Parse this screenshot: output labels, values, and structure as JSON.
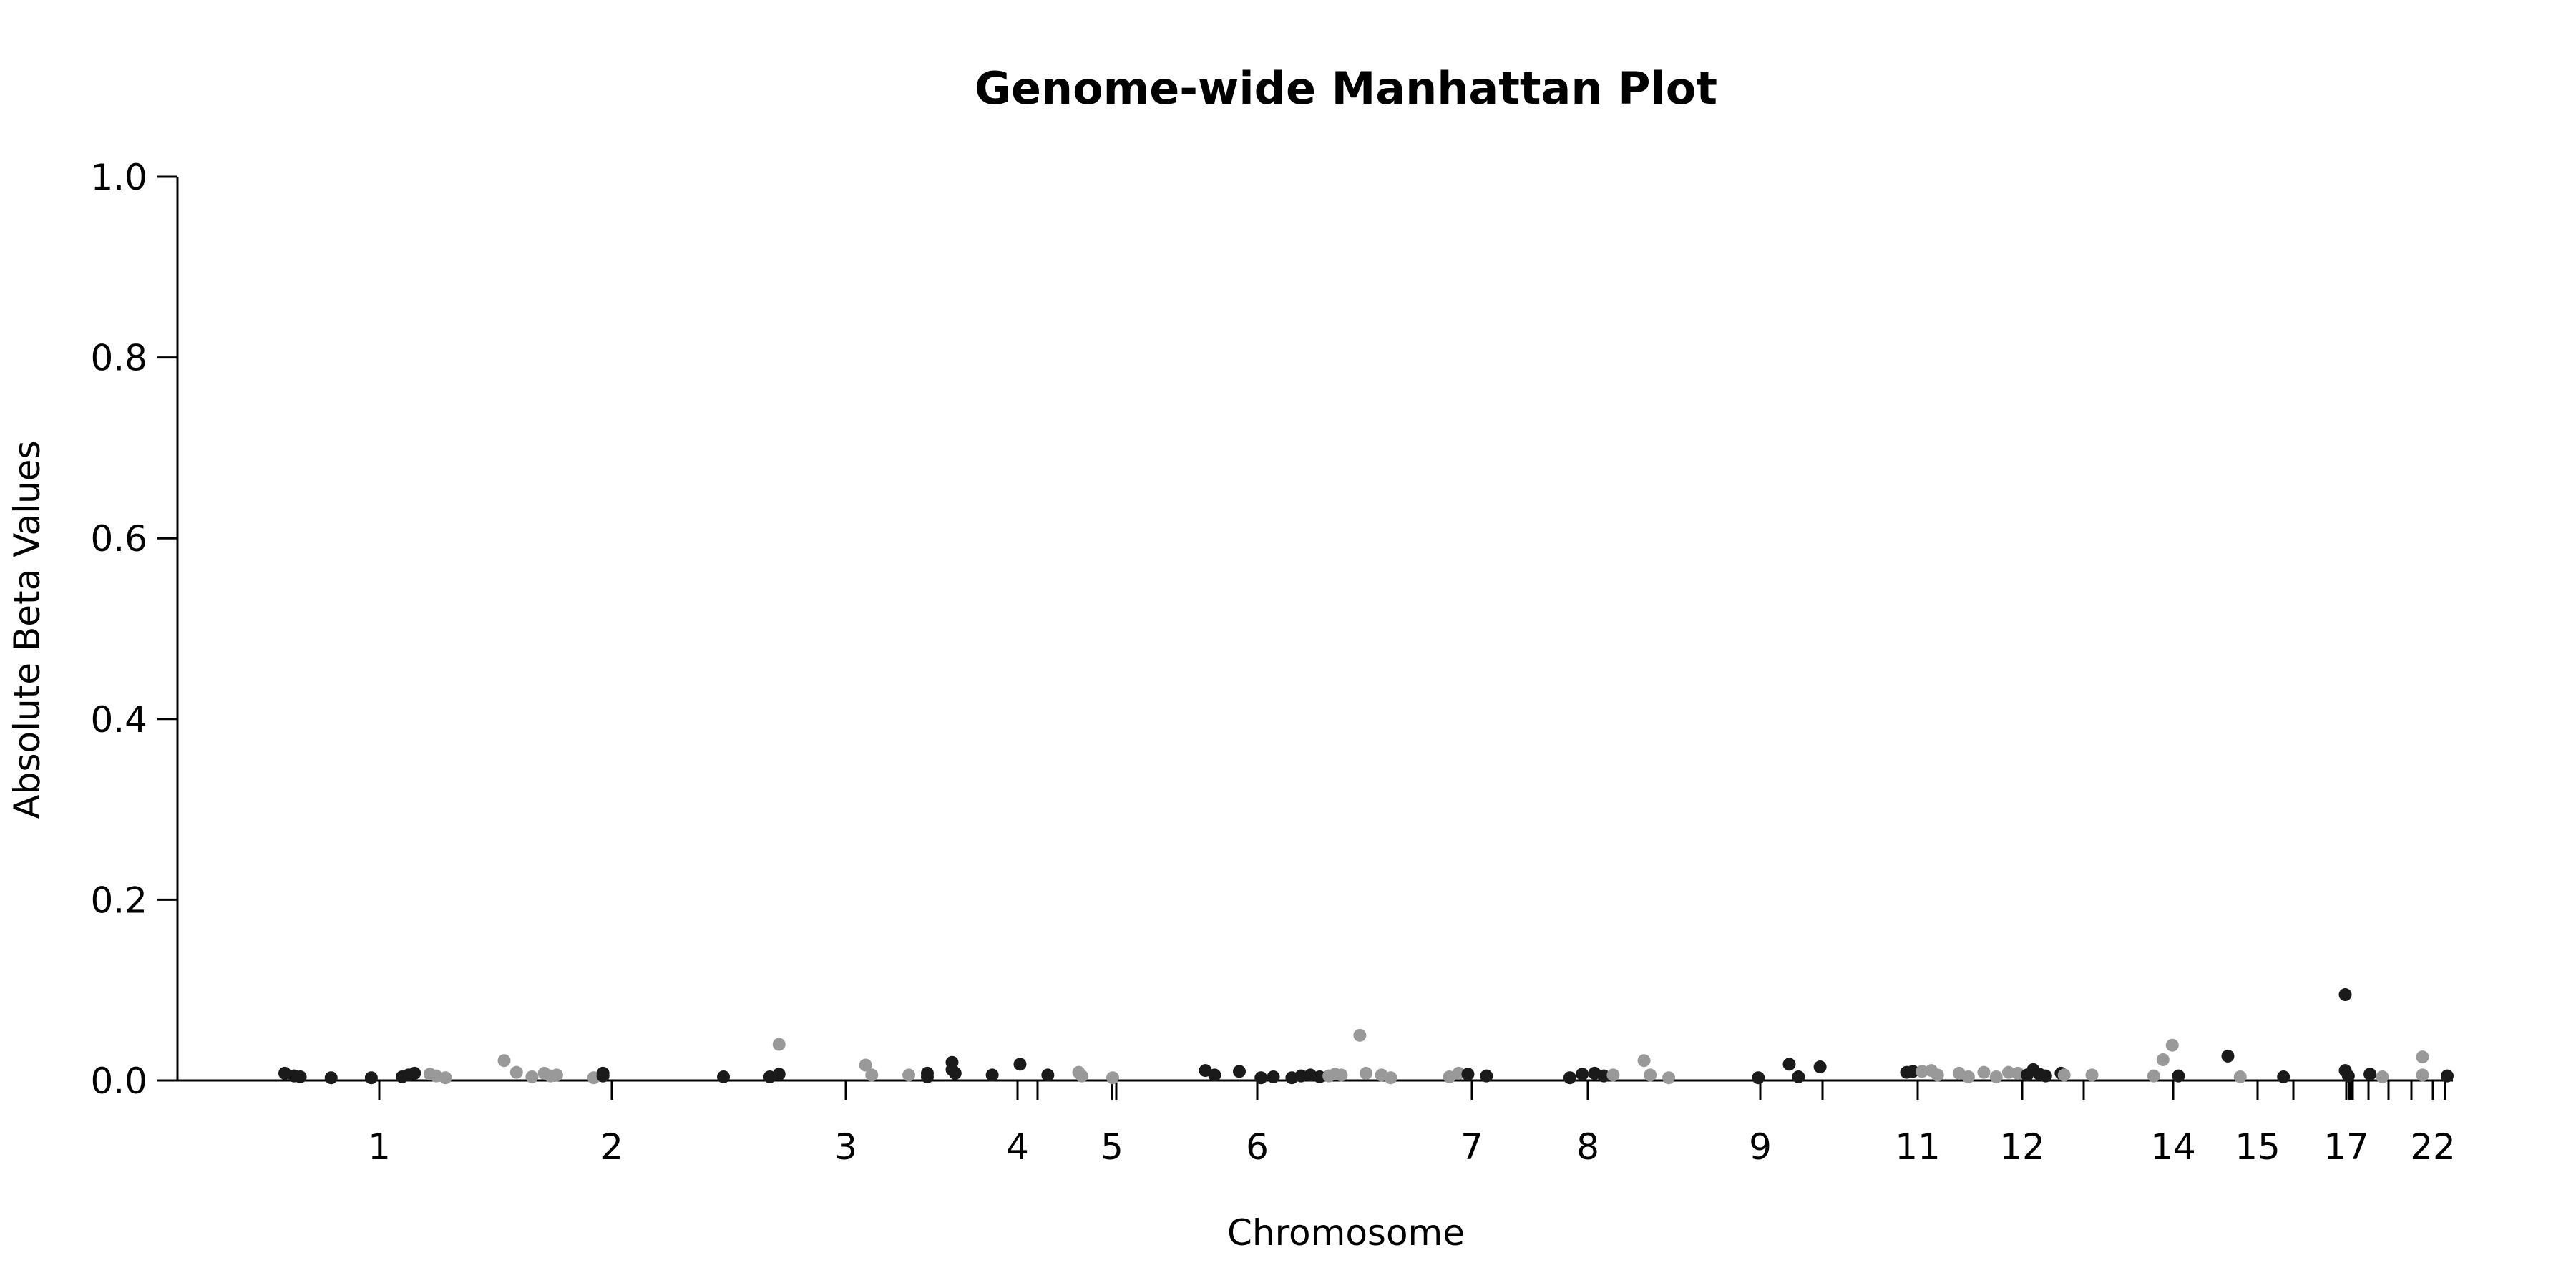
{
  "chart_data": {
    "type": "scatter",
    "title": "Genome-wide Manhattan Plot",
    "xlabel": "Chromosome",
    "ylabel": "Absolute Beta Values",
    "ylim": [
      0,
      1
    ],
    "yticks": [
      "0.0",
      "0.2",
      "0.4",
      "0.6",
      "0.8",
      "1.0"
    ],
    "x_tick_labels": [
      "1",
      "2",
      "3",
      "4",
      "5",
      "6",
      "7",
      "8",
      "9",
      "11",
      "12",
      "14",
      "15",
      "17",
      "22"
    ],
    "grid": false,
    "legend": "none",
    "colors": {
      "dark": "#1a1a1a",
      "light": "#999999",
      "axis": "#000000"
    },
    "points": [
      {
        "x": 0.0,
        "y": 0.008,
        "c": "dark"
      },
      {
        "x": 0.03,
        "y": 0.005,
        "c": "dark"
      },
      {
        "x": 0.05,
        "y": 0.004,
        "c": "dark"
      },
      {
        "x": 0.15,
        "y": 0.003,
        "c": "dark"
      },
      {
        "x": 0.28,
        "y": 0.003,
        "c": "dark"
      },
      {
        "x": 0.38,
        "y": 0.004,
        "c": "dark"
      },
      {
        "x": 0.4,
        "y": 0.006,
        "c": "dark"
      },
      {
        "x": 0.42,
        "y": 0.008,
        "c": "dark"
      },
      {
        "x": 0.47,
        "y": 0.007,
        "c": "light"
      },
      {
        "x": 0.49,
        "y": 0.005,
        "c": "light"
      },
      {
        "x": 0.52,
        "y": 0.003,
        "c": "light"
      },
      {
        "x": 0.71,
        "y": 0.022,
        "c": "light"
      },
      {
        "x": 0.75,
        "y": 0.009,
        "c": "light"
      },
      {
        "x": 0.8,
        "y": 0.004,
        "c": "light"
      },
      {
        "x": 0.84,
        "y": 0.008,
        "c": "light"
      },
      {
        "x": 0.86,
        "y": 0.005,
        "c": "light"
      },
      {
        "x": 0.88,
        "y": 0.006,
        "c": "light"
      },
      {
        "x": 1.0,
        "y": 0.003,
        "c": "light"
      },
      {
        "x": 1.03,
        "y": 0.008,
        "c": "dark"
      },
      {
        "x": 1.03,
        "y": 0.005,
        "c": "dark"
      },
      {
        "x": 1.42,
        "y": 0.004,
        "c": "dark"
      },
      {
        "x": 1.57,
        "y": 0.004,
        "c": "dark"
      },
      {
        "x": 1.6,
        "y": 0.007,
        "c": "dark"
      },
      {
        "x": 1.6,
        "y": 0.04,
        "c": "light"
      },
      {
        "x": 1.88,
        "y": 0.017,
        "c": "light"
      },
      {
        "x": 1.9,
        "y": 0.006,
        "c": "light"
      },
      {
        "x": 2.02,
        "y": 0.006,
        "c": "light"
      },
      {
        "x": 2.08,
        "y": 0.008,
        "c": "dark"
      },
      {
        "x": 2.08,
        "y": 0.004,
        "c": "dark"
      },
      {
        "x": 2.16,
        "y": 0.02,
        "c": "dark"
      },
      {
        "x": 2.16,
        "y": 0.012,
        "c": "dark"
      },
      {
        "x": 2.17,
        "y": 0.008,
        "c": "dark"
      },
      {
        "x": 2.29,
        "y": 0.006,
        "c": "dark"
      },
      {
        "x": 2.38,
        "y": 0.018,
        "c": "dark"
      },
      {
        "x": 2.47,
        "y": 0.006,
        "c": "dark"
      },
      {
        "x": 2.57,
        "y": 0.009,
        "c": "light"
      },
      {
        "x": 2.58,
        "y": 0.005,
        "c": "light"
      },
      {
        "x": 2.68,
        "y": 0.003,
        "c": "light"
      },
      {
        "x": 2.98,
        "y": 0.011,
        "c": "dark"
      },
      {
        "x": 3.01,
        "y": 0.006,
        "c": "dark"
      },
      {
        "x": 3.09,
        "y": 0.01,
        "c": "dark"
      },
      {
        "x": 3.16,
        "y": 0.003,
        "c": "dark"
      },
      {
        "x": 3.2,
        "y": 0.004,
        "c": "dark"
      },
      {
        "x": 3.26,
        "y": 0.003,
        "c": "dark"
      },
      {
        "x": 3.29,
        "y": 0.005,
        "c": "dark"
      },
      {
        "x": 3.32,
        "y": 0.006,
        "c": "dark"
      },
      {
        "x": 3.35,
        "y": 0.004,
        "c": "dark"
      },
      {
        "x": 3.38,
        "y": 0.005,
        "c": "light"
      },
      {
        "x": 3.4,
        "y": 0.007,
        "c": "light"
      },
      {
        "x": 3.42,
        "y": 0.006,
        "c": "light"
      },
      {
        "x": 3.48,
        "y": 0.05,
        "c": "light"
      },
      {
        "x": 3.5,
        "y": 0.008,
        "c": "light"
      },
      {
        "x": 3.55,
        "y": 0.006,
        "c": "light"
      },
      {
        "x": 3.58,
        "y": 0.003,
        "c": "light"
      },
      {
        "x": 3.77,
        "y": 0.004,
        "c": "light"
      },
      {
        "x": 3.8,
        "y": 0.008,
        "c": "light"
      },
      {
        "x": 3.83,
        "y": 0.007,
        "c": "dark"
      },
      {
        "x": 3.89,
        "y": 0.005,
        "c": "dark"
      },
      {
        "x": 4.16,
        "y": 0.003,
        "c": "dark"
      },
      {
        "x": 4.2,
        "y": 0.007,
        "c": "dark"
      },
      {
        "x": 4.24,
        "y": 0.008,
        "c": "dark"
      },
      {
        "x": 4.27,
        "y": 0.005,
        "c": "dark"
      },
      {
        "x": 4.3,
        "y": 0.006,
        "c": "light"
      },
      {
        "x": 4.4,
        "y": 0.022,
        "c": "light"
      },
      {
        "x": 4.42,
        "y": 0.006,
        "c": "light"
      },
      {
        "x": 4.48,
        "y": 0.003,
        "c": "light"
      },
      {
        "x": 4.77,
        "y": 0.003,
        "c": "dark"
      },
      {
        "x": 4.87,
        "y": 0.018,
        "c": "dark"
      },
      {
        "x": 4.9,
        "y": 0.004,
        "c": "dark"
      },
      {
        "x": 4.97,
        "y": 0.015,
        "c": "dark"
      },
      {
        "x": 5.25,
        "y": 0.009,
        "c": "dark"
      },
      {
        "x": 5.27,
        "y": 0.01,
        "c": "dark"
      },
      {
        "x": 5.3,
        "y": 0.01,
        "c": "light"
      },
      {
        "x": 5.33,
        "y": 0.011,
        "c": "light"
      },
      {
        "x": 5.35,
        "y": 0.006,
        "c": "light"
      },
      {
        "x": 5.42,
        "y": 0.008,
        "c": "light"
      },
      {
        "x": 5.45,
        "y": 0.004,
        "c": "light"
      },
      {
        "x": 5.5,
        "y": 0.009,
        "c": "light"
      },
      {
        "x": 5.54,
        "y": 0.004,
        "c": "light"
      },
      {
        "x": 5.58,
        "y": 0.009,
        "c": "light"
      },
      {
        "x": 5.61,
        "y": 0.008,
        "c": "light"
      },
      {
        "x": 5.64,
        "y": 0.006,
        "c": "dark"
      },
      {
        "x": 5.66,
        "y": 0.012,
        "c": "dark"
      },
      {
        "x": 5.68,
        "y": 0.007,
        "c": "dark"
      },
      {
        "x": 5.7,
        "y": 0.005,
        "c": "dark"
      },
      {
        "x": 5.75,
        "y": 0.008,
        "c": "dark"
      },
      {
        "x": 5.76,
        "y": 0.006,
        "c": "light"
      },
      {
        "x": 5.85,
        "y": 0.006,
        "c": "light"
      },
      {
        "x": 6.05,
        "y": 0.005,
        "c": "light"
      },
      {
        "x": 6.08,
        "y": 0.023,
        "c": "light"
      },
      {
        "x": 6.11,
        "y": 0.039,
        "c": "light"
      },
      {
        "x": 6.13,
        "y": 0.005,
        "c": "dark"
      },
      {
        "x": 6.29,
        "y": 0.027,
        "c": "dark"
      },
      {
        "x": 6.33,
        "y": 0.004,
        "c": "light"
      },
      {
        "x": 6.47,
        "y": 0.004,
        "c": "dark"
      },
      {
        "x": 6.67,
        "y": 0.095,
        "c": "dark"
      },
      {
        "x": 6.67,
        "y": 0.011,
        "c": "dark"
      },
      {
        "x": 6.68,
        "y": 0.005,
        "c": "dark"
      },
      {
        "x": 6.75,
        "y": 0.007,
        "c": "dark"
      },
      {
        "x": 6.79,
        "y": 0.004,
        "c": "light"
      },
      {
        "x": 6.92,
        "y": 0.026,
        "c": "light"
      },
      {
        "x": 6.92,
        "y": 0.006,
        "c": "light"
      },
      {
        "x": 7.0,
        "y": 0.005,
        "c": "dark"
      }
    ]
  }
}
